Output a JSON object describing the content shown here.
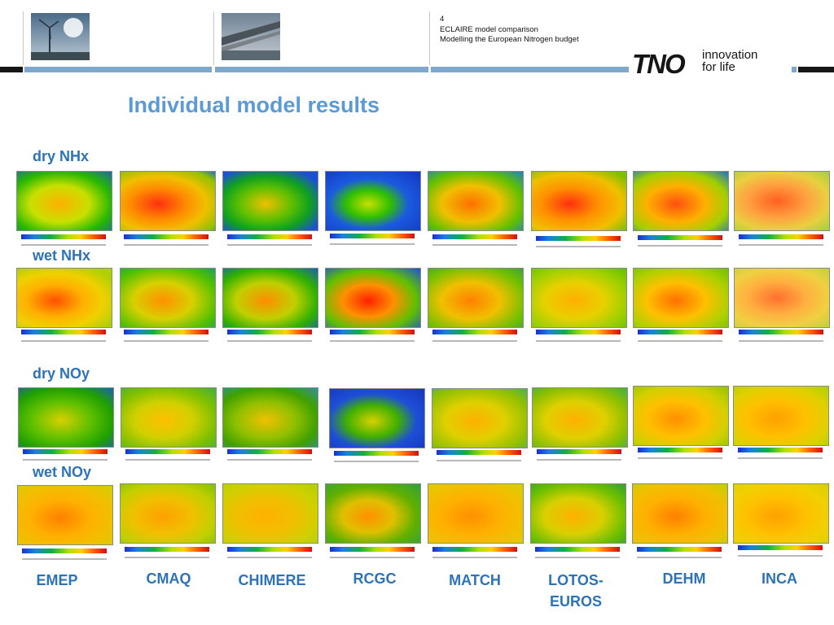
{
  "header": {
    "page_number": "4",
    "line1": "ECLAIRE model comparison",
    "line2": "Modelling the European Nitrogen budget"
  },
  "logo": {
    "mark": "TNO",
    "tagline_1": "innovation",
    "tagline_2": "for life"
  },
  "title": "Individual model results",
  "rows": [
    {
      "label": "dry NHx"
    },
    {
      "label": "wet NHx"
    },
    {
      "label": "dry NOy"
    },
    {
      "label": "wet NOy"
    }
  ],
  "models": [
    {
      "label": "EMEP"
    },
    {
      "label": "CMAQ"
    },
    {
      "label": "CHIMERE"
    },
    {
      "label": "RCGC"
    },
    {
      "label": "MATCH"
    },
    {
      "label": "LOTOS-\nEUROS"
    },
    {
      "label": "DEHM"
    },
    {
      "label": "INCA"
    }
  ],
  "colors": {
    "title": "#5b9bd5",
    "labels": "#2e73b5",
    "bar_dark": "#161616",
    "bar_light": "#7fa8cf"
  }
}
